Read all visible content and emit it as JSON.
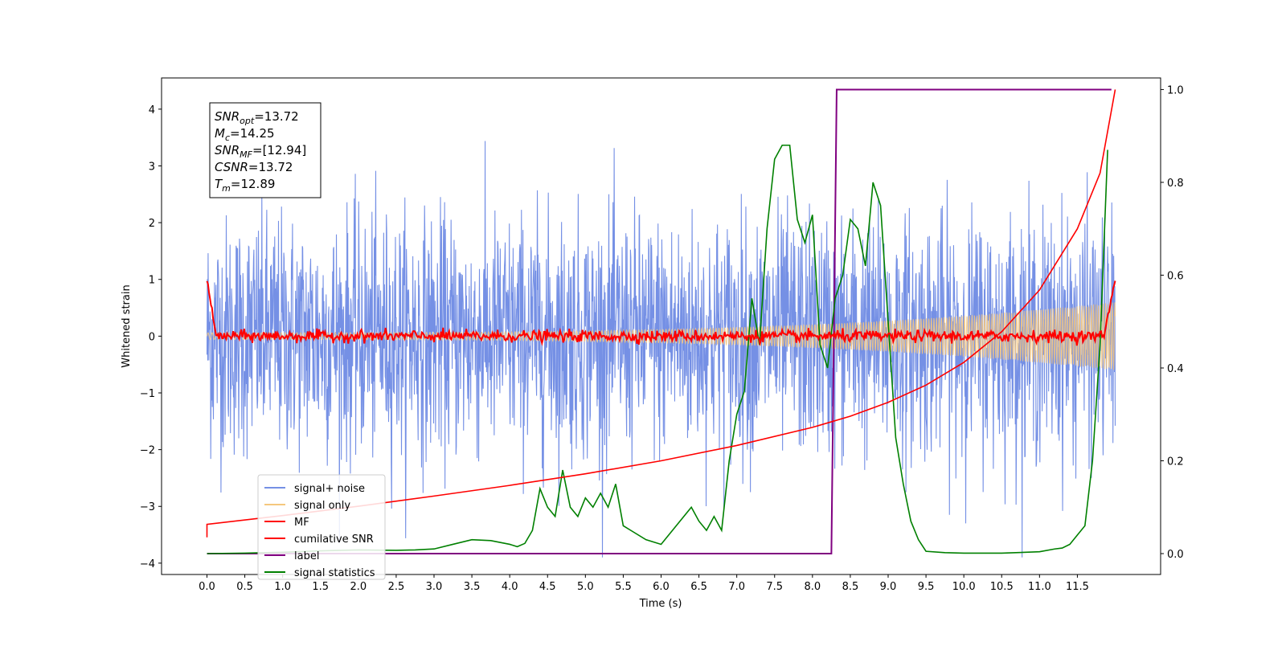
{
  "chart_data": {
    "type": "line",
    "xlabel": "Time (s)",
    "ylabel": "Whitened strain",
    "xlim": [
      -0.6,
      12.6
    ],
    "ylim": [
      -4.2,
      4.55
    ],
    "y2lim": [
      -0.045,
      1.025
    ],
    "x_ticks": [
      0.0,
      0.5,
      1.0,
      1.5,
      2.0,
      2.5,
      3.0,
      3.5,
      4.0,
      4.5,
      5.0,
      5.5,
      6.0,
      6.5,
      7.0,
      7.5,
      8.0,
      8.5,
      9.0,
      9.5,
      10.0,
      10.5,
      11.0,
      11.5
    ],
    "x_tick_labels": [
      "0.0",
      "0.5",
      "1.0",
      "1.5",
      "2.0",
      "2.5",
      "3.0",
      "3.5",
      "4.0",
      "4.5",
      "5.0",
      "5.5",
      "6.0",
      "6.5",
      "7.0",
      "7.5",
      "8.0",
      "8.5",
      "9.0",
      "9.5",
      "10.0",
      "10.5",
      "11.0",
      "11.5"
    ],
    "y_ticks": [
      -4,
      -3,
      -2,
      -1,
      0,
      1,
      2,
      3,
      4
    ],
    "y_tick_labels": [
      "−4",
      "−3",
      "−2",
      "−1",
      "0",
      "1",
      "2",
      "3",
      "4"
    ],
    "y2_ticks": [
      0.0,
      0.2,
      0.4,
      0.6,
      0.8,
      1.0
    ],
    "y2_tick_labels": [
      "0.0",
      "0.2",
      "0.4",
      "0.6",
      "0.8",
      "1.0"
    ],
    "legend_position": "lower-left",
    "grid": false,
    "stats": {
      "snr_opt": {
        "sym": "SNR",
        "sub": "opt",
        "value": "=13.72"
      },
      "mc": {
        "sym": "M",
        "sub": "c",
        "value": "=14.25"
      },
      "snr_mf": {
        "sym": "SNR",
        "sub": "MF",
        "value": "=[12.94]"
      },
      "csnr": {
        "sym": "CSNR",
        "sub": "",
        "value": "=13.72"
      },
      "tm": {
        "sym": "T",
        "sub": "m",
        "value": "=12.89"
      }
    },
    "series": [
      {
        "name": "signal+ noise",
        "color": "#7590e5",
        "axis": "left",
        "kind": "gaussian noise, std ~1.05, peaks to ~4.2",
        "x_range": [
          0.0,
          12.0
        ]
      },
      {
        "name": "signal only",
        "color": "#f5c77e",
        "axis": "left",
        "kind": "chirp, amplitude growing 0.06 to 0.6",
        "x_range": [
          0.0,
          12.0
        ]
      },
      {
        "name": "MF",
        "color": "#ff0000",
        "axis": "left",
        "kind": "matched filter output ~0 with small ripples, ends rising to 1.0",
        "x_range": [
          0.0,
          12.0
        ]
      },
      {
        "name": "cumilative SNR",
        "color": "#ff0000",
        "axis": "right",
        "x": [
          0.0,
          1.0,
          2.0,
          3.0,
          4.0,
          5.0,
          6.0,
          7.0,
          8.0,
          8.5,
          9.0,
          9.5,
          10.0,
          10.5,
          11.0,
          11.5,
          11.8,
          12.0
        ],
        "y": [
          0.063,
          0.082,
          0.102,
          0.124,
          0.147,
          0.172,
          0.2,
          0.233,
          0.272,
          0.296,
          0.326,
          0.363,
          0.412,
          0.478,
          0.568,
          0.7,
          0.82,
          1.0
        ]
      },
      {
        "name": "label",
        "color": "#800080",
        "axis": "right",
        "x": [
          0.0,
          8.25,
          8.32,
          11.95
        ],
        "y": [
          0.0,
          0.0,
          1.0,
          1.0
        ]
      },
      {
        "name": "signal statistics",
        "color": "#008000",
        "axis": "right",
        "x": [
          0.0,
          0.5,
          1.0,
          1.5,
          2.0,
          2.5,
          2.75,
          3.0,
          3.25,
          3.5,
          3.75,
          4.0,
          4.1,
          4.2,
          4.3,
          4.4,
          4.5,
          4.6,
          4.7,
          4.8,
          4.9,
          5.0,
          5.1,
          5.2,
          5.3,
          5.4,
          5.5,
          5.6,
          5.8,
          6.0,
          6.2,
          6.4,
          6.5,
          6.6,
          6.7,
          6.8,
          6.9,
          7.0,
          7.1,
          7.2,
          7.3,
          7.4,
          7.5,
          7.6,
          7.7,
          7.8,
          7.9,
          8.0,
          8.1,
          8.2,
          8.3,
          8.4,
          8.5,
          8.6,
          8.7,
          8.8,
          8.9,
          9.0,
          9.1,
          9.2,
          9.3,
          9.4,
          9.5,
          9.75,
          10.0,
          10.5,
          11.0,
          11.2,
          11.3,
          11.4,
          11.5,
          11.6,
          11.7,
          11.8,
          11.9
        ],
        "y": [
          0.0,
          0.001,
          0.003,
          0.006,
          0.008,
          0.007,
          0.008,
          0.01,
          0.02,
          0.03,
          0.028,
          0.02,
          0.015,
          0.022,
          0.05,
          0.14,
          0.1,
          0.08,
          0.18,
          0.1,
          0.08,
          0.12,
          0.1,
          0.13,
          0.1,
          0.15,
          0.06,
          0.05,
          0.03,
          0.02,
          0.06,
          0.1,
          0.07,
          0.05,
          0.08,
          0.05,
          0.2,
          0.3,
          0.35,
          0.55,
          0.45,
          0.7,
          0.85,
          0.88,
          0.88,
          0.72,
          0.67,
          0.73,
          0.45,
          0.4,
          0.55,
          0.6,
          0.72,
          0.7,
          0.62,
          0.8,
          0.75,
          0.5,
          0.25,
          0.15,
          0.07,
          0.03,
          0.005,
          0.002,
          0.001,
          0.001,
          0.004,
          0.01,
          0.012,
          0.02,
          0.04,
          0.06,
          0.2,
          0.45,
          0.87
        ]
      }
    ]
  }
}
